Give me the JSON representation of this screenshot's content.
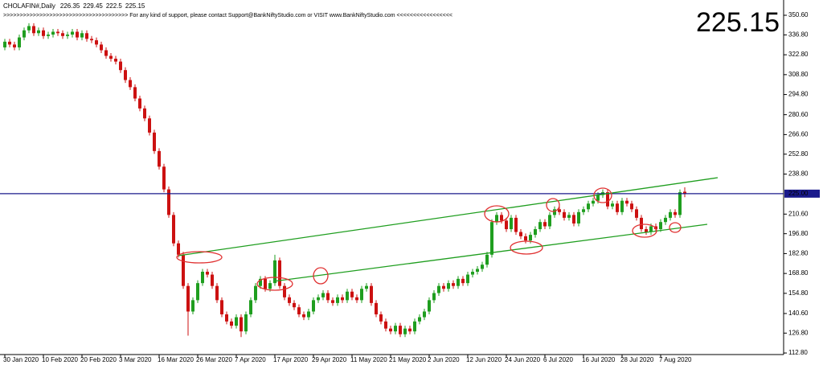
{
  "chart_data": {
    "type": "candlestick",
    "title": "CHOLAFIN#,Daily",
    "banner": ">>>>>>>>>>>>>>>>>>>>>>>>>>>>>>>>>>>>>> For any kind of support, please contact Support@BankNiftyStudio.com or VISIT www.BankNiftyStudio.com <<<<<<<<<<<<<<<<<",
    "up_color": "#1f9e1f",
    "down_color": "#cc1111",
    "price_line_color": "#1a1a8c",
    "last_price_color": "#22dd22",
    "ylim": [
      111.7,
      355.7
    ],
    "yticks": [
      {
        "value": 350.6,
        "label": "350.60"
      },
      {
        "value": 336.8,
        "label": "336.80"
      },
      {
        "value": 322.8,
        "label": "322.80"
      },
      {
        "value": 308.8,
        "label": "308.80"
      },
      {
        "value": 294.8,
        "label": "294.80"
      },
      {
        "value": 280.6,
        "label": "280.60"
      },
      {
        "value": 266.6,
        "label": "266.60"
      },
      {
        "value": 252.8,
        "label": "252.80"
      },
      {
        "value": 238.8,
        "label": "238.80"
      },
      {
        "value": 210.6,
        "label": "210.60"
      },
      {
        "value": 196.8,
        "label": "196.80"
      },
      {
        "value": 182.8,
        "label": "182.80"
      },
      {
        "value": 168.8,
        "label": "168.80"
      },
      {
        "value": 154.8,
        "label": "154.80"
      },
      {
        "value": 140.6,
        "label": "140.60"
      },
      {
        "value": 126.8,
        "label": "126.80"
      },
      {
        "value": 112.8,
        "label": "112.80"
      }
    ],
    "price_line": {
      "value": 225,
      "label": "225.00"
    },
    "categories": [
      "30 Jan 2020",
      null,
      null,
      null,
      null,
      null,
      null,
      null,
      "10 Feb 2020",
      null,
      null,
      null,
      null,
      null,
      null,
      null,
      "20 Feb 2020",
      null,
      null,
      null,
      null,
      null,
      null,
      null,
      "3 Mar 2020",
      null,
      null,
      null,
      null,
      null,
      null,
      null,
      "16 Mar 2020",
      null,
      null,
      null,
      null,
      null,
      null,
      null,
      "26 Mar 2020",
      null,
      null,
      null,
      null,
      null,
      null,
      null,
      "7 Apr 2020",
      null,
      null,
      null,
      null,
      null,
      null,
      null,
      "17 Apr 2020",
      null,
      null,
      null,
      null,
      null,
      null,
      null,
      "29 Apr 2020",
      null,
      null,
      null,
      null,
      null,
      null,
      null,
      "11 May 2020",
      null,
      null,
      null,
      null,
      null,
      null,
      null,
      "21 May 2020",
      null,
      null,
      null,
      null,
      null,
      null,
      null,
      "2 Jun 2020",
      null,
      null,
      null,
      null,
      null,
      null,
      null,
      "12 Jun 2020",
      null,
      null,
      null,
      null,
      null,
      null,
      null,
      "24 Jun 2020",
      null,
      null,
      null,
      null,
      null,
      null,
      null,
      "6 Jul 2020",
      null,
      null,
      null,
      null,
      null,
      null,
      null,
      "16 Jul 2020",
      null,
      null,
      null,
      null,
      null,
      null,
      null,
      "28 Jul 2020",
      null,
      null,
      null,
      null,
      null,
      null,
      null,
      "7 Aug 2020",
      null,
      null,
      null,
      null,
      null
    ],
    "open": [
      328,
      332,
      330,
      328,
      335,
      340,
      343,
      338,
      340,
      336,
      337,
      339,
      338,
      336,
      337,
      339,
      335,
      338,
      334,
      333,
      330,
      326,
      322,
      320,
      318,
      312,
      305,
      300,
      292,
      285,
      278,
      268,
      255,
      244,
      228,
      210,
      190,
      182,
      160,
      142,
      150,
      162,
      170,
      168,
      160,
      150,
      140,
      135,
      132,
      138,
      128,
      140,
      150,
      160,
      165,
      158,
      162,
      178,
      160,
      152,
      148,
      145,
      140,
      138,
      142,
      150,
      152,
      155,
      150,
      148,
      152,
      150,
      156,
      152,
      150,
      158,
      160,
      148,
      140,
      135,
      130,
      128,
      132,
      126,
      130,
      128,
      135,
      138,
      142,
      150,
      155,
      160,
      158,
      162,
      160,
      165,
      162,
      168,
      170,
      172,
      175,
      182,
      205,
      210,
      206,
      200,
      208,
      198,
      195,
      192,
      196,
      200,
      205,
      202,
      210,
      214,
      212,
      208,
      210,
      204,
      212,
      214,
      218,
      220,
      224,
      226,
      216,
      218,
      212,
      220,
      218,
      214,
      208,
      200,
      198,
      202,
      200,
      205,
      208,
      212,
      210,
      226.35
    ],
    "high": [
      334,
      334,
      332,
      337,
      342,
      345,
      345,
      342,
      342,
      339,
      341,
      341,
      340,
      339,
      341,
      341,
      340,
      340,
      336,
      335,
      332,
      328,
      324,
      322,
      320,
      314,
      307,
      302,
      294,
      287,
      280,
      270,
      257,
      246,
      230,
      212,
      192,
      184,
      162,
      152,
      164,
      172,
      172,
      170,
      162,
      152,
      142,
      137,
      140,
      140,
      142,
      152,
      162,
      167,
      167,
      164,
      182,
      180,
      162,
      154,
      150,
      147,
      142,
      144,
      152,
      154,
      157,
      157,
      152,
      154,
      154,
      158,
      158,
      154,
      160,
      162,
      162,
      150,
      142,
      137,
      132,
      134,
      134,
      132,
      132,
      137,
      140,
      144,
      152,
      157,
      162,
      162,
      164,
      164,
      167,
      167,
      170,
      172,
      174,
      177,
      184,
      207,
      212,
      212,
      208,
      210,
      210,
      200,
      197,
      198,
      202,
      207,
      207,
      212,
      216,
      216,
      214,
      212,
      212,
      214,
      216,
      220,
      222,
      226,
      228,
      228,
      220,
      220,
      222,
      222,
      220,
      216,
      210,
      202,
      204,
      204,
      207,
      210,
      214,
      214,
      228,
      229.45
    ],
    "low": [
      326,
      328,
      326,
      326,
      333,
      338,
      336,
      336,
      334,
      334,
      335,
      336,
      334,
      334,
      335,
      333,
      333,
      332,
      331,
      328,
      324,
      320,
      318,
      316,
      310,
      303,
      298,
      290,
      283,
      276,
      266,
      253,
      242,
      226,
      208,
      188,
      180,
      158,
      125,
      140,
      148,
      160,
      166,
      158,
      148,
      138,
      133,
      130,
      130,
      124,
      126,
      138,
      148,
      158,
      156,
      156,
      160,
      158,
      150,
      146,
      143,
      138,
      136,
      136,
      140,
      148,
      150,
      148,
      146,
      146,
      148,
      148,
      150,
      148,
      148,
      156,
      146,
      138,
      133,
      128,
      126,
      126,
      124,
      124,
      126,
      126,
      133,
      136,
      140,
      148,
      153,
      156,
      156,
      158,
      158,
      160,
      160,
      166,
      168,
      170,
      173,
      180,
      203,
      204,
      198,
      198,
      196,
      193,
      190,
      190,
      194,
      198,
      200,
      200,
      208,
      210,
      206,
      206,
      202,
      202,
      210,
      212,
      216,
      218,
      222,
      214,
      214,
      210,
      210,
      216,
      212,
      206,
      198,
      196,
      196,
      198,
      198,
      203,
      206,
      208,
      208,
      222.5
    ],
    "close": [
      332,
      330,
      328,
      335,
      340,
      343,
      338,
      340,
      336,
      337,
      339,
      338,
      336,
      337,
      339,
      335,
      338,
      334,
      333,
      330,
      326,
      322,
      320,
      318,
      312,
      305,
      300,
      292,
      285,
      278,
      268,
      255,
      244,
      228,
      210,
      190,
      182,
      160,
      142,
      150,
      162,
      170,
      168,
      160,
      150,
      140,
      135,
      132,
      138,
      128,
      140,
      150,
      160,
      165,
      158,
      162,
      178,
      160,
      152,
      148,
      145,
      140,
      138,
      142,
      150,
      152,
      155,
      150,
      148,
      152,
      150,
      156,
      152,
      150,
      158,
      160,
      148,
      140,
      135,
      130,
      128,
      132,
      126,
      130,
      128,
      135,
      138,
      142,
      150,
      155,
      160,
      158,
      162,
      160,
      165,
      162,
      168,
      170,
      172,
      175,
      182,
      205,
      210,
      206,
      200,
      208,
      198,
      195,
      192,
      196,
      200,
      205,
      202,
      210,
      214,
      212,
      208,
      210,
      204,
      212,
      214,
      218,
      220,
      224,
      226,
      216,
      218,
      212,
      220,
      218,
      214,
      208,
      200,
      198,
      202,
      200,
      205,
      208,
      212,
      210,
      226,
      225.15
    ]
  }
}
